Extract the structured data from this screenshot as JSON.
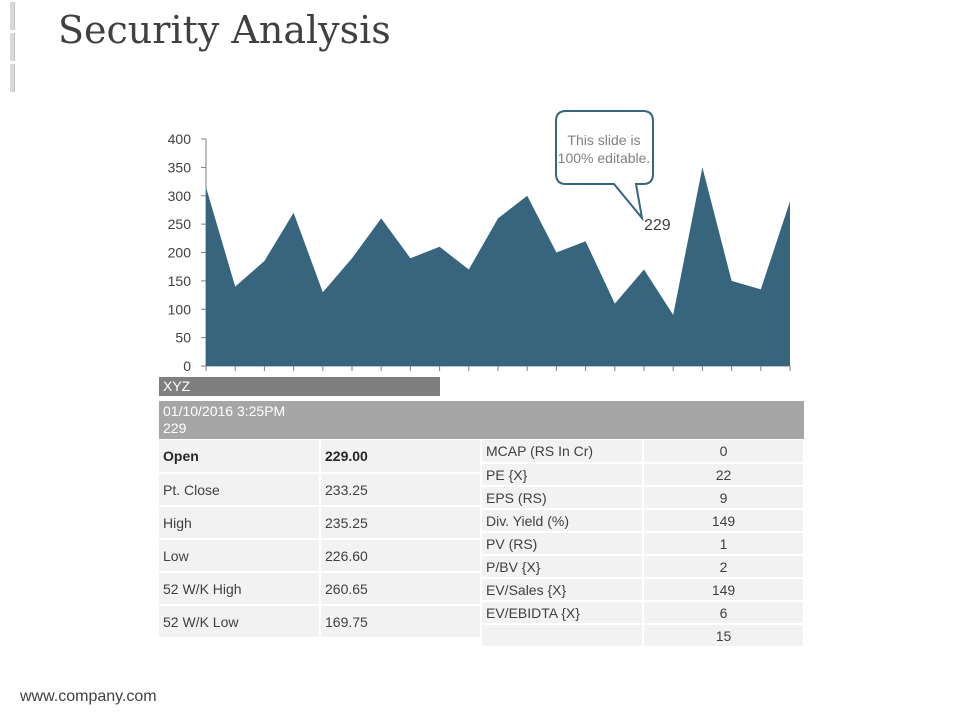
{
  "title": "Security Analysis",
  "footer": "www.company.com",
  "callout": {
    "text_line1": "This slide is",
    "text_line2": "100% editable.",
    "value_label": "229"
  },
  "xyz_label": "XYZ",
  "quote": {
    "datetime": "01/10/2016  3:25PM",
    "price": "229"
  },
  "left_table": [
    {
      "label": "Open",
      "value": "229.00"
    },
    {
      "label": "Pt. Close",
      "value": "233.25"
    },
    {
      "label": "High",
      "value": "235.25"
    },
    {
      "label": "Low",
      "value": "226.60"
    },
    {
      "label": "52 W/K High",
      "value": "260.65"
    },
    {
      "label": "52 W/K Low",
      "value": "169.75"
    }
  ],
  "right_table": [
    {
      "label": "MCAP (RS In Cr)",
      "value": "0"
    },
    {
      "label": "PE {X}",
      "value": "22"
    },
    {
      "label": "EPS (RS)",
      "value": "9"
    },
    {
      "label": "Div. Yield (%)",
      "value": "149"
    },
    {
      "label": "PV (RS)",
      "value": "1"
    },
    {
      "label": "P/BV {X}",
      "value": "2"
    },
    {
      "label": "EV/Sales  {X}",
      "value": "149"
    },
    {
      "label": "EV/EBIDTA {X}",
      "value": "6"
    },
    {
      "label": "",
      "value": "15"
    }
  ],
  "colors": {
    "area": "#37657d",
    "callout_border": "#37657d"
  },
  "chart_data": {
    "type": "area",
    "title": "",
    "xlabel": "",
    "ylabel": "",
    "ylim": [
      0,
      400
    ],
    "yticks": [
      0,
      50,
      100,
      150,
      200,
      250,
      300,
      350,
      400
    ],
    "x": [
      1,
      2,
      3,
      4,
      5,
      6,
      7,
      8,
      9,
      10,
      11,
      12,
      13,
      14,
      15,
      16,
      17,
      18,
      19,
      20,
      21
    ],
    "values": [
      315,
      140,
      185,
      270,
      130,
      190,
      260,
      190,
      210,
      170,
      260,
      300,
      200,
      220,
      110,
      170,
      90,
      350,
      150,
      135,
      290
    ],
    "annotation": {
      "text": "229"
    }
  }
}
